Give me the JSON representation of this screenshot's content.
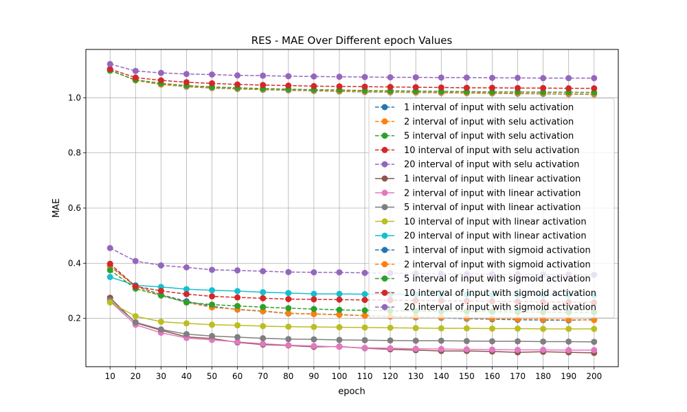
{
  "chart_data": {
    "type": "line",
    "title": "RES - MAE Over Different epoch Values",
    "xlabel": "epoch",
    "ylabel": "MAE",
    "x": [
      10,
      20,
      30,
      40,
      50,
      60,
      70,
      80,
      90,
      100,
      110,
      120,
      130,
      140,
      150,
      160,
      170,
      180,
      190,
      200
    ],
    "x_tick_labels": [
      "10",
      "20",
      "30",
      "40",
      "50",
      "60",
      "70",
      "80",
      "90",
      "100",
      "110",
      "120",
      "130",
      "140",
      "150",
      "160",
      "170",
      "180",
      "190",
      "200"
    ],
    "y_ticks": [
      0.2,
      0.4,
      0.6,
      0.8,
      1.0
    ],
    "y_tick_labels": [
      "0.2",
      "0.4",
      "0.6",
      "0.8",
      "1.0"
    ],
    "xlim": [
      0.5,
      209.5
    ],
    "ylim": [
      0.025,
      1.175
    ],
    "grid": true,
    "legend_position": "center-right",
    "series": [
      {
        "name": "1 interval of input with selu activation",
        "color": "#1f77b4",
        "style": "dashed",
        "values": [
          1.1,
          1.063,
          1.048,
          1.04,
          1.035,
          1.032,
          1.029,
          1.027,
          1.025,
          1.023,
          1.021,
          1.02,
          1.019,
          1.018,
          1.017,
          1.016,
          1.015,
          1.014,
          1.013,
          1.012
        ]
      },
      {
        "name": "2 interval of input with selu activation",
        "color": "#ff7f0e",
        "style": "dashed",
        "values": [
          1.1,
          1.063,
          1.048,
          1.041,
          1.036,
          1.033,
          1.03,
          1.028,
          1.026,
          1.024,
          1.022,
          1.021,
          1.02,
          1.019,
          1.018,
          1.017,
          1.016,
          1.015,
          1.014,
          1.013
        ]
      },
      {
        "name": "5 interval of input with selu activation",
        "color": "#2ca02c",
        "style": "dashed",
        "values": [
          1.098,
          1.065,
          1.052,
          1.044,
          1.039,
          1.036,
          1.033,
          1.031,
          1.029,
          1.028,
          1.026,
          1.025,
          1.024,
          1.023,
          1.022,
          1.021,
          1.021,
          1.02,
          1.02,
          1.019
        ]
      },
      {
        "name": "10 interval of input with selu activation",
        "color": "#d62728",
        "style": "dashed",
        "values": [
          1.104,
          1.073,
          1.063,
          1.056,
          1.052,
          1.048,
          1.046,
          1.044,
          1.042,
          1.041,
          1.04,
          1.039,
          1.038,
          1.037,
          1.036,
          1.036,
          1.035,
          1.035,
          1.034,
          1.034
        ]
      },
      {
        "name": "20 interval of input with selu activation",
        "color": "#9467bd",
        "style": "dashed",
        "values": [
          1.122,
          1.097,
          1.09,
          1.086,
          1.084,
          1.081,
          1.08,
          1.078,
          1.077,
          1.076,
          1.075,
          1.074,
          1.074,
          1.073,
          1.073,
          1.072,
          1.072,
          1.071,
          1.071,
          1.071
        ]
      },
      {
        "name": "1 interval of input with linear activation",
        "color": "#8c564b",
        "style": "solid",
        "values": [
          0.275,
          0.184,
          0.157,
          0.133,
          0.127,
          0.113,
          0.105,
          0.102,
          0.097,
          0.098,
          0.092,
          0.088,
          0.085,
          0.082,
          0.082,
          0.08,
          0.077,
          0.079,
          0.077,
          0.075
        ]
      },
      {
        "name": "2 interval of input with linear activation",
        "color": "#e377c2",
        "style": "solid",
        "values": [
          0.262,
          0.177,
          0.148,
          0.129,
          0.122,
          0.115,
          0.108,
          0.103,
          0.1,
          0.097,
          0.093,
          0.092,
          0.09,
          0.089,
          0.088,
          0.087,
          0.086,
          0.086,
          0.085,
          0.085
        ]
      },
      {
        "name": "5 interval of input with linear activation",
        "color": "#7f7f7f",
        "style": "solid",
        "values": [
          0.266,
          0.186,
          0.16,
          0.143,
          0.136,
          0.132,
          0.128,
          0.125,
          0.124,
          0.122,
          0.121,
          0.12,
          0.119,
          0.119,
          0.118,
          0.117,
          0.117,
          0.116,
          0.116,
          0.115
        ]
      },
      {
        "name": "10 interval of input with linear activation",
        "color": "#bcbd22",
        "style": "solid",
        "values": [
          0.258,
          0.208,
          0.188,
          0.182,
          0.177,
          0.175,
          0.172,
          0.17,
          0.169,
          0.168,
          0.167,
          0.166,
          0.165,
          0.164,
          0.164,
          0.163,
          0.163,
          0.162,
          0.162,
          0.162
        ]
      },
      {
        "name": "20 interval of input with linear activation",
        "color": "#17becf",
        "style": "solid",
        "values": [
          0.35,
          0.32,
          0.314,
          0.306,
          0.302,
          0.299,
          0.295,
          0.292,
          0.289,
          0.289,
          0.288,
          0.288,
          0.287,
          0.286,
          0.286,
          0.285,
          0.285,
          0.285,
          0.284,
          0.284
        ]
      },
      {
        "name": "1 interval of input with sigmoid activation",
        "color": "#1f77b4",
        "style": "dashed",
        "values": [
          0.39,
          0.318,
          0.286,
          0.262,
          0.244,
          0.232,
          0.226,
          0.218,
          0.216,
          0.214,
          0.21,
          0.207,
          0.204,
          0.202,
          0.199,
          0.197,
          0.195,
          0.194,
          0.193,
          0.196
        ]
      },
      {
        "name": "2 interval of input with sigmoid activation",
        "color": "#ff7f0e",
        "style": "dashed",
        "values": [
          0.388,
          0.316,
          0.284,
          0.258,
          0.24,
          0.233,
          0.227,
          0.219,
          0.216,
          0.213,
          0.21,
          0.207,
          0.205,
          0.203,
          0.201,
          0.199,
          0.197,
          0.196,
          0.195,
          0.194
        ]
      },
      {
        "name": "5 interval of input with sigmoid activation",
        "color": "#2ca02c",
        "style": "dashed",
        "values": [
          0.375,
          0.308,
          0.283,
          0.258,
          0.25,
          0.245,
          0.241,
          0.237,
          0.234,
          0.231,
          0.229,
          0.228,
          0.226,
          0.225,
          0.225,
          0.224,
          0.223,
          0.223,
          0.222,
          0.222
        ]
      },
      {
        "name": "10 interval of input with sigmoid activation",
        "color": "#d62728",
        "style": "dashed",
        "values": [
          0.398,
          0.316,
          0.3,
          0.288,
          0.28,
          0.276,
          0.273,
          0.27,
          0.269,
          0.268,
          0.267,
          0.266,
          0.265,
          0.264,
          0.263,
          0.262,
          0.261,
          0.26,
          0.259,
          0.258
        ]
      },
      {
        "name": "20 interval of input with sigmoid activation",
        "color": "#9467bd",
        "style": "dashed",
        "values": [
          0.455,
          0.408,
          0.392,
          0.385,
          0.376,
          0.374,
          0.371,
          0.368,
          0.367,
          0.367,
          0.365,
          0.364,
          0.363,
          0.362,
          0.361,
          0.36,
          0.36,
          0.359,
          0.359,
          0.358
        ]
      }
    ]
  }
}
